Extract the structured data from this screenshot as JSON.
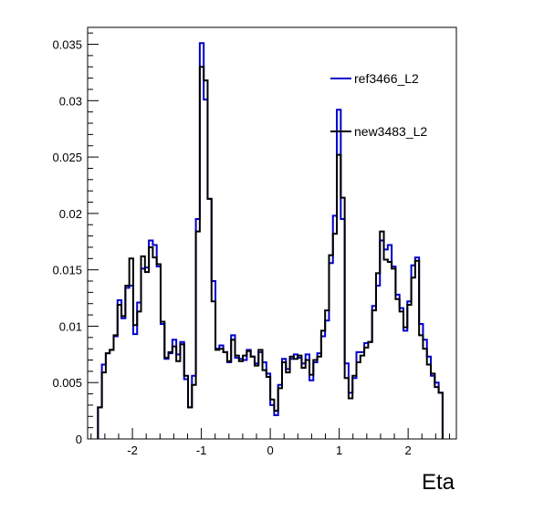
{
  "chart_data": {
    "type": "line",
    "title": "",
    "xlabel": "Eta",
    "ylabel": "",
    "xlim": [
      -2.65,
      2.7
    ],
    "ylim": [
      0,
      0.0365
    ],
    "grid": false,
    "legend_placement": "top-right",
    "x_ticks": [
      {
        "value": -2,
        "label": "-2"
      },
      {
        "value": -1,
        "label": "-1"
      },
      {
        "value": 0,
        "label": "0"
      },
      {
        "value": 1,
        "label": "1"
      },
      {
        "value": 2,
        "label": "2"
      }
    ],
    "y_ticks": [
      {
        "value": 0,
        "label": "0"
      },
      {
        "value": 0.005,
        "label": "0.005"
      },
      {
        "value": 0.01,
        "label": "0.01"
      },
      {
        "value": 0.015,
        "label": "0.015"
      },
      {
        "value": 0.02,
        "label": "0.02"
      },
      {
        "value": 0.025,
        "label": "0.025"
      },
      {
        "value": 0.03,
        "label": "0.03"
      },
      {
        "value": 0.035,
        "label": "0.035"
      }
    ],
    "bin_edges": [
      -2.5,
      2.5
    ],
    "series": [
      {
        "name": "ref3466_L2",
        "color": "#0000cc",
        "values": [
          0.0028,
          0.0066,
          0.0076,
          0.0079,
          0.0091,
          0.0123,
          0.0107,
          0.0134,
          0.0136,
          0.0093,
          0.0121,
          0.0151,
          0.0152,
          0.0176,
          0.0172,
          0.0153,
          0.0102,
          0.0071,
          0.0076,
          0.0088,
          0.0075,
          0.0086,
          0.0053,
          0.0028,
          0.0056,
          0.0195,
          0.0351,
          0.0301,
          0.0213,
          0.014,
          0.008,
          0.0083,
          0.0077,
          0.0068,
          0.0092,
          0.0072,
          0.0071,
          0.007,
          0.0079,
          0.0073,
          0.0067,
          0.0077,
          0.0068,
          0.0058,
          0.003,
          0.0021,
          0.0048,
          0.0071,
          0.0062,
          0.0071,
          0.0075,
          0.0072,
          0.0067,
          0.0075,
          0.0052,
          0.0068,
          0.0076,
          0.0091,
          0.0105,
          0.0156,
          0.0198,
          0.0292,
          0.0195,
          0.0067,
          0.0041,
          0.0054,
          0.0077,
          0.0077,
          0.0085,
          0.0086,
          0.0118,
          0.0136,
          0.0176,
          0.0168,
          0.0172,
          0.0153,
          0.0128,
          0.0116,
          0.0096,
          0.0122,
          0.0154,
          0.0161,
          0.0102,
          0.0088,
          0.0073,
          0.0056,
          0.005,
          0.0041
        ]
      },
      {
        "name": "new3483_L2",
        "color": "#000000",
        "values": [
          0.0028,
          0.0059,
          0.0076,
          0.0079,
          0.0092,
          0.0119,
          0.0109,
          0.0136,
          0.016,
          0.0101,
          0.0113,
          0.0162,
          0.0148,
          0.017,
          0.0161,
          0.0155,
          0.0104,
          0.0072,
          0.0077,
          0.0082,
          0.0069,
          0.0084,
          0.0056,
          0.0028,
          0.0048,
          0.0184,
          0.033,
          0.0318,
          0.0213,
          0.0122,
          0.0079,
          0.008,
          0.0077,
          0.0069,
          0.0088,
          0.0074,
          0.0069,
          0.0074,
          0.0078,
          0.0073,
          0.0065,
          0.0079,
          0.0061,
          0.0055,
          0.0035,
          0.0025,
          0.0045,
          0.0068,
          0.0059,
          0.0073,
          0.0071,
          0.0074,
          0.0063,
          0.007,
          0.0057,
          0.007,
          0.0073,
          0.0096,
          0.0114,
          0.0163,
          0.0182,
          0.0252,
          0.0214,
          0.0054,
          0.0036,
          0.0056,
          0.0068,
          0.0074,
          0.0081,
          0.0086,
          0.0114,
          0.0147,
          0.0184,
          0.0159,
          0.0157,
          0.0151,
          0.0124,
          0.0113,
          0.0099,
          0.0119,
          0.0143,
          0.0158,
          0.0092,
          0.008,
          0.0066,
          0.0058,
          0.0046,
          0.0041
        ]
      }
    ]
  }
}
